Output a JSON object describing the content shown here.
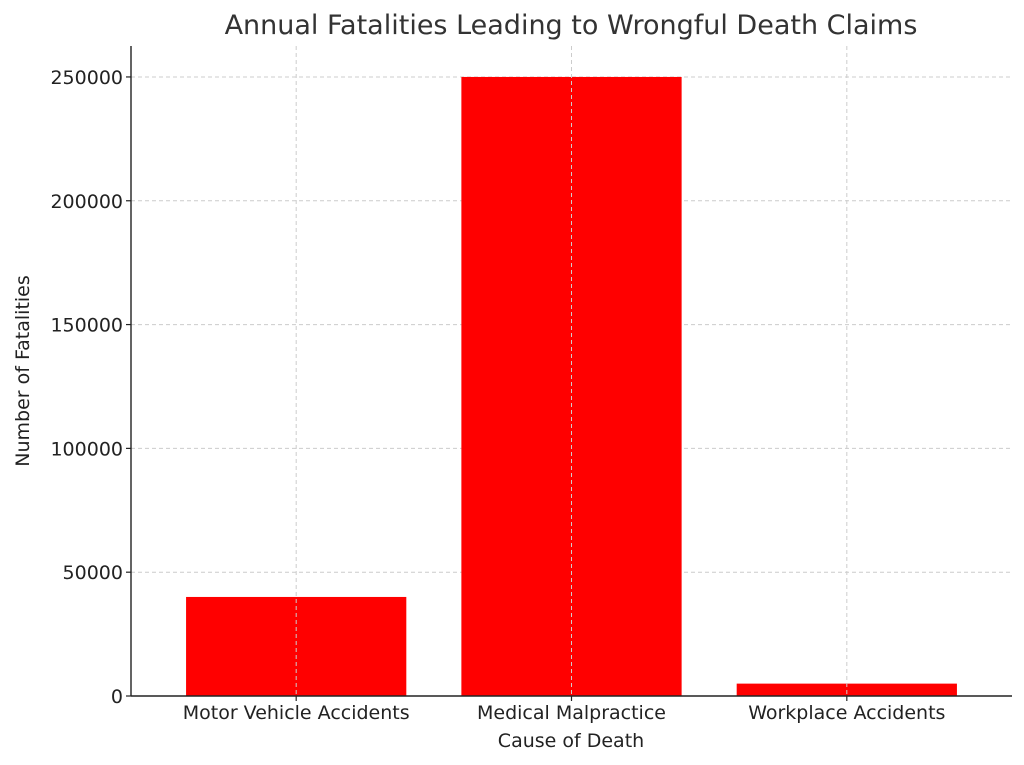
{
  "chart_data": {
    "type": "bar",
    "title": "Annual Fatalities Leading to Wrongful Death Claims",
    "xlabel": "Cause of Death",
    "ylabel": "Number of Fatalities",
    "categories": [
      "Motor Vehicle Accidents",
      "Medical Malpractice",
      "Workplace Accidents"
    ],
    "values": [
      40000,
      250000,
      5000
    ],
    "yticks": [
      0,
      50000,
      100000,
      150000,
      200000,
      250000
    ],
    "ylim": [
      0,
      262500
    ],
    "bar_color": "#ff0000",
    "grid": true
  }
}
